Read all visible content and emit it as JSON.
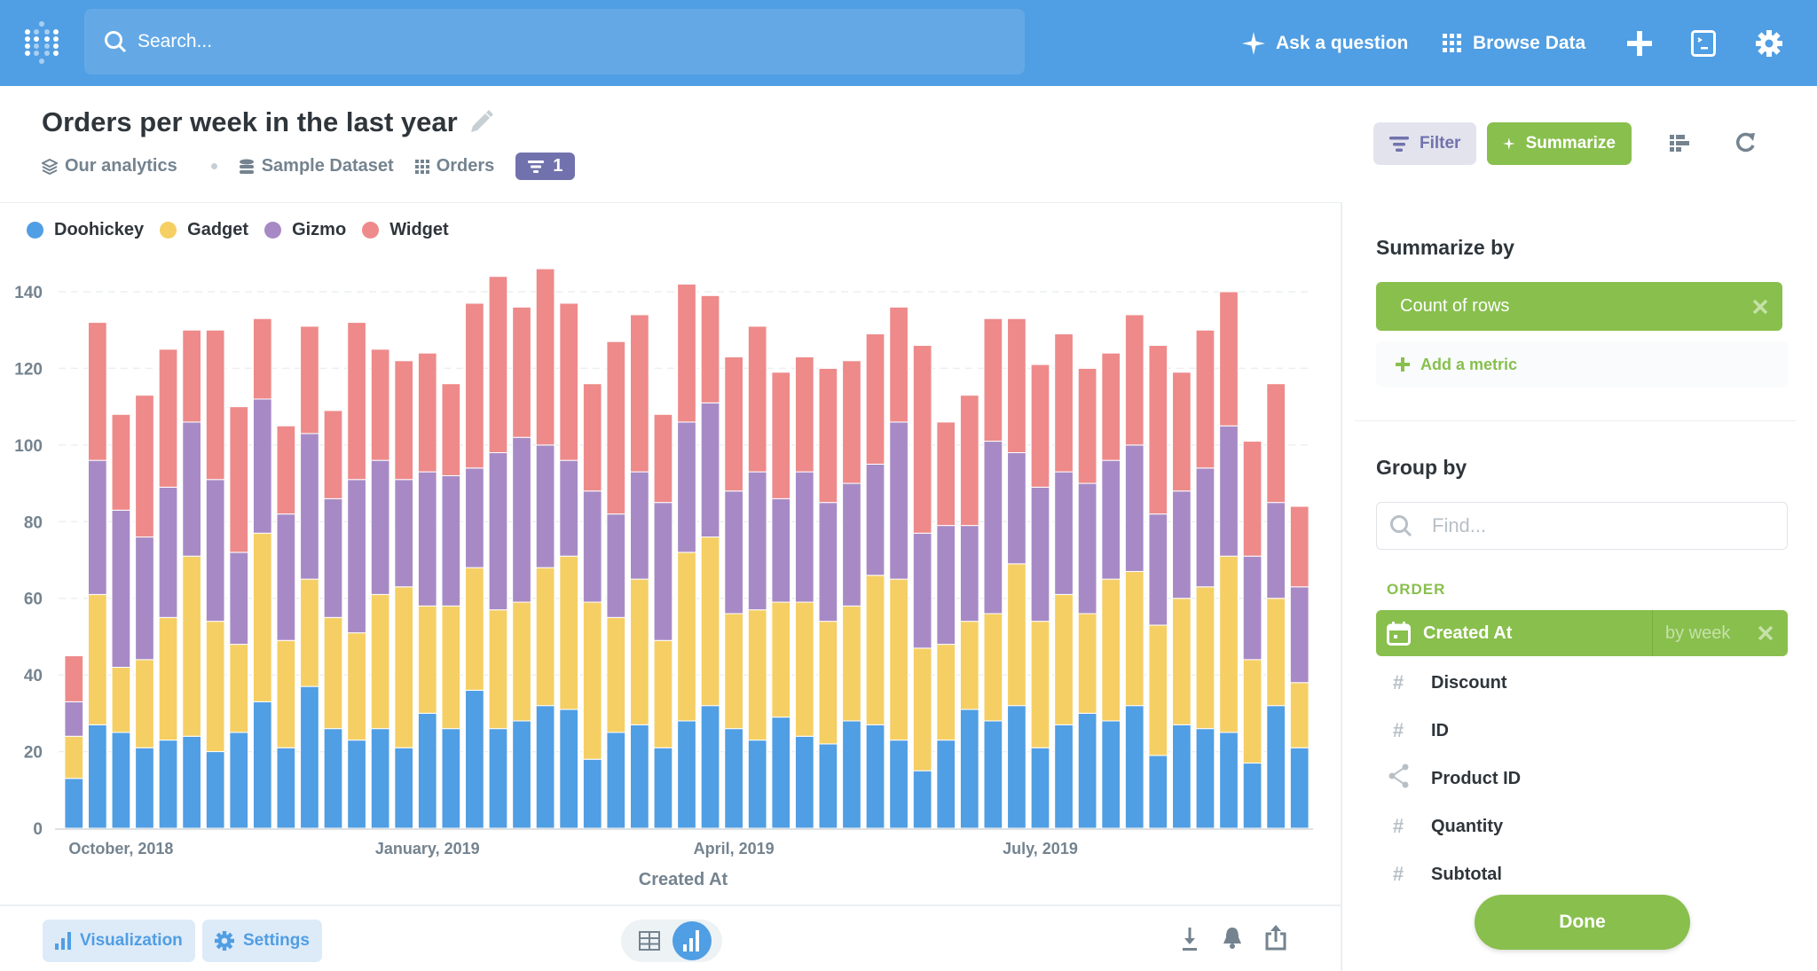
{
  "topbar": {
    "search_placeholder": "Search...",
    "ask_question": "Ask a question",
    "browse_data": "Browse Data"
  },
  "header": {
    "title": "Orders per week in the last year",
    "breadcrumbs": [
      "Our analytics",
      "Sample Dataset",
      "Orders"
    ],
    "filter_count": "1",
    "filter_label": "Filter",
    "summarize_label": "Summarize"
  },
  "colors": {
    "brand": "#509EE3",
    "summarize": "#88BF4D",
    "filter": "#7172AD"
  },
  "chart_data": {
    "type": "bar",
    "stacked": true,
    "xlabel": "Created At",
    "ylabel": "",
    "ylim": [
      0,
      140
    ],
    "yticks": [
      0,
      20,
      40,
      60,
      80,
      100,
      120,
      140
    ],
    "grid": true,
    "legend_placement": "top-left",
    "x_tick_labels": [
      {
        "label": "October, 2018",
        "bar_index": 2
      },
      {
        "label": "January, 2019",
        "bar_index": 15
      },
      {
        "label": "April, 2019",
        "bar_index": 28
      },
      {
        "label": "July, 2019",
        "bar_index": 41
      }
    ],
    "series": [
      {
        "name": "Doohickey",
        "color": "#509EE3",
        "values": [
          13,
          27,
          25,
          21,
          23,
          24,
          20,
          25,
          33,
          21,
          37,
          26,
          23,
          26,
          21,
          30,
          26,
          36,
          26,
          28,
          32,
          31,
          18,
          25,
          27,
          21,
          28,
          32,
          26,
          23,
          29,
          24,
          22,
          28,
          27,
          23,
          15,
          23,
          31,
          28,
          32,
          21,
          27,
          30,
          28,
          32,
          19,
          27,
          26,
          25,
          17,
          32,
          21
        ]
      },
      {
        "name": "Gadget",
        "color": "#F5CF64",
        "values": [
          11,
          34,
          17,
          23,
          32,
          47,
          34,
          23,
          44,
          28,
          28,
          29,
          28,
          35,
          42,
          28,
          32,
          32,
          31,
          31,
          36,
          40,
          41,
          30,
          38,
          28,
          44,
          44,
          30,
          34,
          30,
          35,
          32,
          30,
          39,
          42,
          32,
          25,
          23,
          28,
          37,
          33,
          34,
          26,
          37,
          35,
          34,
          33,
          37,
          46,
          27,
          28,
          17
        ]
      },
      {
        "name": "Gizmo",
        "color": "#A78AC5",
        "values": [
          9,
          35,
          41,
          32,
          34,
          35,
          37,
          24,
          35,
          33,
          38,
          31,
          40,
          35,
          28,
          35,
          34,
          26,
          41,
          43,
          32,
          25,
          29,
          27,
          28,
          36,
          34,
          35,
          32,
          36,
          27,
          34,
          31,
          32,
          29,
          41,
          30,
          31,
          25,
          45,
          29,
          35,
          32,
          34,
          31,
          33,
          29,
          28,
          31,
          34,
          27,
          25,
          25
        ]
      },
      {
        "name": "Widget",
        "color": "#EE8A8A",
        "values": [
          12,
          36,
          25,
          37,
          36,
          24,
          39,
          38,
          21,
          23,
          28,
          23,
          41,
          29,
          31,
          31,
          24,
          43,
          46,
          34,
          46,
          41,
          28,
          45,
          41,
          23,
          36,
          28,
          35,
          38,
          33,
          30,
          35,
          32,
          34,
          30,
          49,
          27,
          34,
          32,
          35,
          32,
          36,
          30,
          28,
          34,
          44,
          31,
          36,
          35,
          30,
          31,
          21
        ]
      }
    ]
  },
  "footer": {
    "visualization": "Visualization",
    "settings": "Settings"
  },
  "sidebar": {
    "summarize_title": "Summarize by",
    "metric": "Count of rows",
    "add_metric": "Add a metric",
    "group_title": "Group by",
    "find_placeholder": "Find...",
    "section": "ORDER",
    "selected_field": "Created At",
    "selected_bucket": "by week",
    "fields": [
      {
        "label": "Discount",
        "icon": "#"
      },
      {
        "label": "ID",
        "icon": "#"
      },
      {
        "label": "Product ID",
        "icon": "share"
      },
      {
        "label": "Quantity",
        "icon": "#"
      },
      {
        "label": "Subtotal",
        "icon": "#"
      }
    ],
    "done": "Done"
  }
}
